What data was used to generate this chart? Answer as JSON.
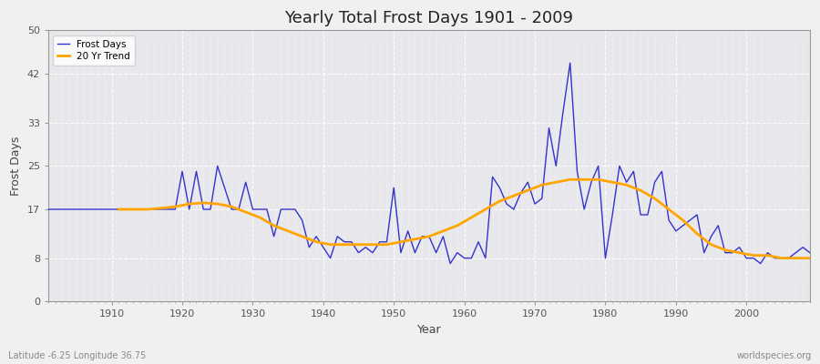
{
  "title": "Yearly Total Frost Days 1901 - 2009",
  "xlabel": "Year",
  "ylabel": "Frost Days",
  "lat_lon_label": "Latitude -6.25 Longitude 36.75",
  "watermark": "worldspecies.org",
  "ylim": [
    0,
    50
  ],
  "yticks": [
    0,
    8,
    17,
    25,
    33,
    42,
    50
  ],
  "xlim": [
    1901,
    2009
  ],
  "frost_line_color": "#3333cc",
  "trend_line_color": "#FFA500",
  "fig_bg_color": "#f0f0f0",
  "plot_bg_color": "#e8e8ec",
  "years": [
    1901,
    1902,
    1903,
    1904,
    1905,
    1906,
    1907,
    1908,
    1909,
    1910,
    1911,
    1912,
    1913,
    1914,
    1915,
    1916,
    1917,
    1918,
    1919,
    1920,
    1921,
    1922,
    1923,
    1924,
    1925,
    1926,
    1927,
    1928,
    1929,
    1930,
    1931,
    1932,
    1933,
    1934,
    1935,
    1936,
    1937,
    1938,
    1939,
    1940,
    1941,
    1942,
    1943,
    1944,
    1945,
    1946,
    1947,
    1948,
    1949,
    1950,
    1951,
    1952,
    1953,
    1954,
    1955,
    1956,
    1957,
    1958,
    1959,
    1960,
    1961,
    1962,
    1963,
    1964,
    1965,
    1966,
    1967,
    1968,
    1969,
    1970,
    1971,
    1972,
    1973,
    1974,
    1975,
    1976,
    1977,
    1978,
    1979,
    1980,
    1981,
    1982,
    1983,
    1984,
    1985,
    1986,
    1987,
    1988,
    1989,
    1990,
    1991,
    1992,
    1993,
    1994,
    1995,
    1996,
    1997,
    1998,
    1999,
    2000,
    2001,
    2002,
    2003,
    2004,
    2005,
    2006,
    2007,
    2008,
    2009
  ],
  "frost_days": [
    17,
    17,
    17,
    17,
    17,
    17,
    17,
    17,
    17,
    17,
    17,
    17,
    17,
    17,
    17,
    17,
    17,
    17,
    17,
    24,
    17,
    24,
    17,
    17,
    25,
    21,
    17,
    17,
    22,
    17,
    17,
    17,
    12,
    17,
    17,
    17,
    15,
    10,
    12,
    10,
    8,
    12,
    11,
    11,
    9,
    10,
    9,
    11,
    11,
    21,
    9,
    13,
    9,
    12,
    12,
    9,
    12,
    7,
    9,
    8,
    8,
    11,
    8,
    23,
    21,
    18,
    17,
    20,
    22,
    18,
    19,
    32,
    25,
    35,
    44,
    24,
    17,
    22,
    25,
    8,
    16,
    25,
    22,
    24,
    16,
    16,
    22,
    24,
    15,
    13,
    14,
    15,
    16,
    9,
    12,
    14,
    9,
    9,
    10,
    8,
    8,
    7,
    9,
    8,
    8,
    8,
    9,
    10,
    9
  ],
  "trend_years": [
    1911,
    1913,
    1915,
    1917,
    1919,
    1921,
    1923,
    1925,
    1927,
    1929,
    1931,
    1933,
    1935,
    1937,
    1939,
    1941,
    1943,
    1945,
    1947,
    1949,
    1951,
    1953,
    1955,
    1957,
    1959,
    1961,
    1963,
    1965,
    1967,
    1969,
    1971,
    1973,
    1975,
    1977,
    1979,
    1981,
    1983,
    1985,
    1987,
    1989,
    1991,
    1993,
    1995,
    1997,
    1999,
    2001,
    2003,
    2005,
    2007,
    2009
  ],
  "trend_values": [
    17.0,
    17.0,
    17.0,
    17.2,
    17.5,
    18.0,
    18.2,
    18.0,
    17.5,
    16.5,
    15.5,
    14.0,
    13.0,
    12.0,
    11.0,
    10.5,
    10.5,
    10.5,
    10.5,
    10.5,
    11.0,
    11.5,
    12.0,
    13.0,
    14.0,
    15.5,
    17.0,
    18.5,
    19.5,
    20.5,
    21.5,
    22.0,
    22.5,
    22.5,
    22.5,
    22.0,
    21.5,
    20.5,
    19.0,
    17.0,
    15.0,
    12.5,
    10.5,
    9.5,
    9.0,
    8.5,
    8.5,
    8.0,
    8.0,
    8.0
  ]
}
